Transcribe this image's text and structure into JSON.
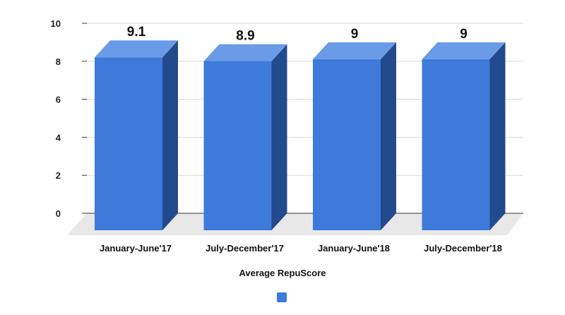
{
  "chart_data": {
    "type": "bar",
    "style": "3d",
    "categories": [
      "January-June'17",
      "July-December'17",
      "January-June'18",
      "July-December'18"
    ],
    "series": [
      {
        "name": "Average RepuScore",
        "values": [
          9.1,
          8.9,
          9,
          9
        ],
        "data_labels": [
          "9.1",
          "8.9",
          "9",
          "9"
        ]
      }
    ],
    "yticks": [
      "0",
      "2",
      "4",
      "6",
      "8",
      "10"
    ],
    "ylim": [
      0,
      10
    ],
    "grid": true,
    "legend": "bottom",
    "colors": {
      "bar_front": "#3d7ada",
      "bar_top": "#6a9be6",
      "bar_side": "#234a8c",
      "floor": "#e8e8e8",
      "grid": "#d8d8d8",
      "axis": "#333333"
    }
  }
}
